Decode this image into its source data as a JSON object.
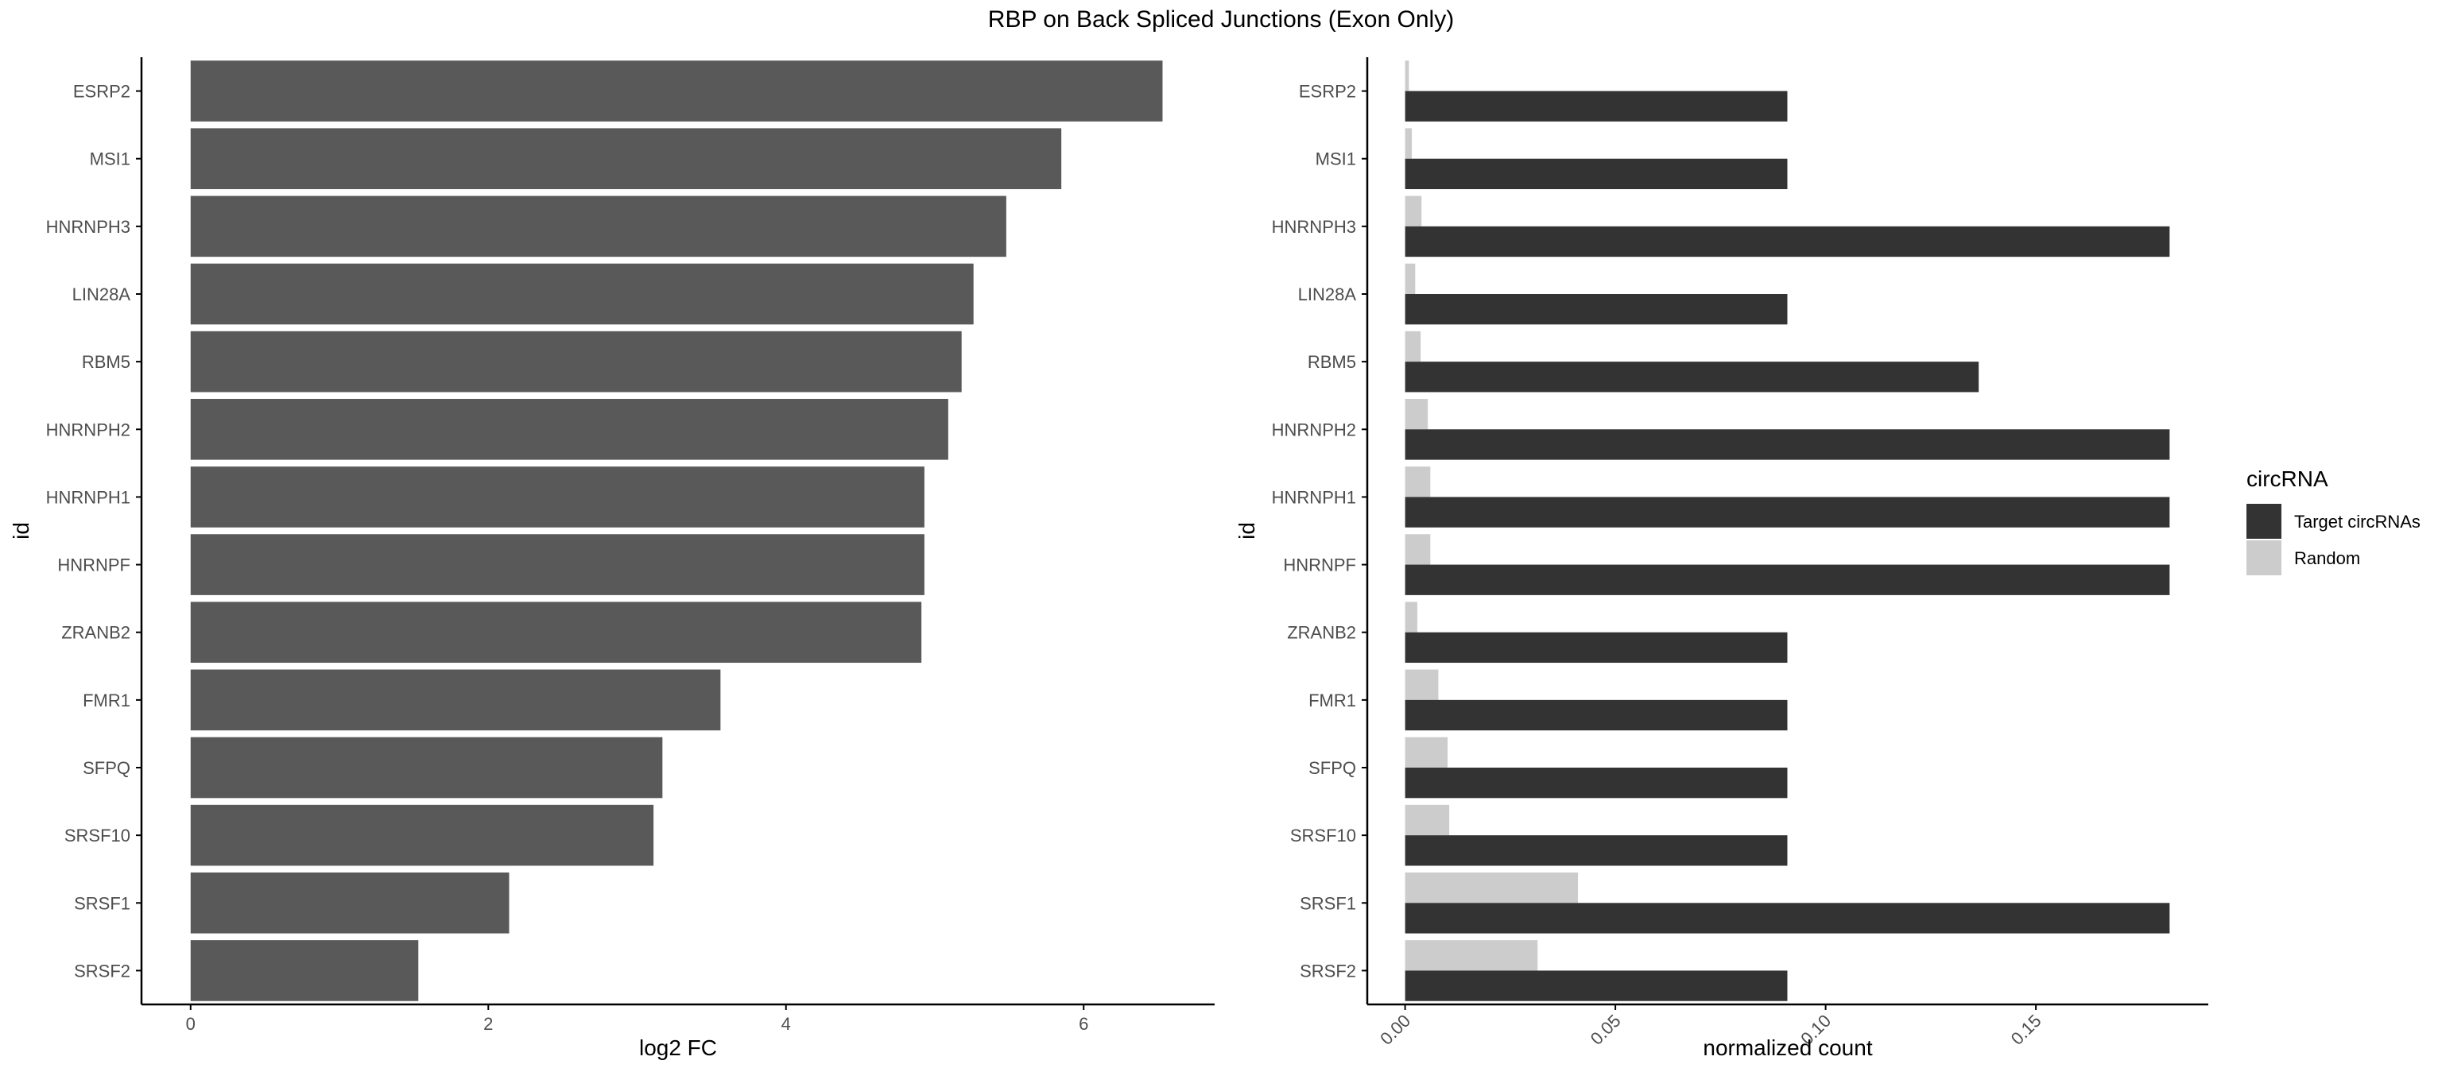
{
  "title": "RBP on Back Spliced Junctions (Exon Only)",
  "colors": {
    "left_bar": "#595959",
    "target": "#333333",
    "random": "#cccccc",
    "axis": "#000000",
    "tick_label": "#4d4d4d"
  },
  "chart_data": [
    {
      "type": "bar",
      "orientation": "horizontal",
      "categories": [
        "ESRP2",
        "MSI1",
        "HNRNPH3",
        "LIN28A",
        "RBM5",
        "HNRNPH2",
        "HNRNPH1",
        "HNRNPF",
        "ZRANB2",
        "FMR1",
        "SFPQ",
        "SRSF10",
        "SRSF1",
        "SRSF2"
      ],
      "values": [
        6.53,
        5.85,
        5.48,
        5.26,
        5.18,
        5.09,
        4.93,
        4.93,
        4.91,
        3.56,
        3.17,
        3.11,
        2.14,
        1.53
      ],
      "xlabel": "log2 FC",
      "ylabel": "id",
      "xlim": [
        -0.33,
        6.88
      ],
      "xticks": [
        0,
        2,
        4,
        6
      ],
      "xtick_labels": [
        "0",
        "2",
        "4",
        "6"
      ],
      "grid": false
    },
    {
      "type": "bar",
      "orientation": "horizontal",
      "position": "dodge",
      "categories": [
        "ESRP2",
        "MSI1",
        "HNRNPH3",
        "LIN28A",
        "RBM5",
        "HNRNPH2",
        "HNRNPH1",
        "HNRNPF",
        "ZRANB2",
        "FMR1",
        "SFPQ",
        "SRSF10",
        "SRSF1",
        "SRSF2"
      ],
      "series": [
        {
          "name": "Target circRNAs",
          "values": [
            0.0909,
            0.0909,
            0.1818,
            0.0909,
            0.1364,
            0.1818,
            0.1818,
            0.1818,
            0.0909,
            0.0909,
            0.0909,
            0.0909,
            0.1818,
            0.0909
          ]
        },
        {
          "name": "Random",
          "values": [
            0.0009,
            0.0016,
            0.0039,
            0.0024,
            0.0037,
            0.0054,
            0.006,
            0.006,
            0.0029,
            0.0079,
            0.0101,
            0.0105,
            0.0411,
            0.0315
          ]
        }
      ],
      "xlabel": "normalized count",
      "ylabel": "id",
      "xlim": [
        -0.009,
        0.191
      ],
      "xticks": [
        0,
        0.05,
        0.1,
        0.15
      ],
      "xtick_labels": [
        "0.00",
        "0.05",
        "0.10",
        "0.15"
      ],
      "xtick_rotation": 45,
      "legend": {
        "title": "circRNA",
        "placement": "right"
      },
      "grid": false
    }
  ]
}
